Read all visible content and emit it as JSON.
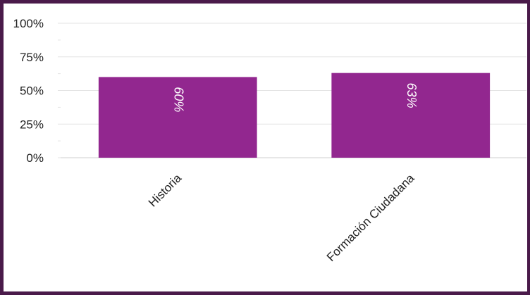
{
  "chart_data": {
    "type": "bar",
    "categories": [
      "Historia",
      "Formación Ciudadana"
    ],
    "values": [
      60,
      63
    ],
    "data_labels": [
      "60%",
      "63%"
    ],
    "title": "",
    "xlabel": "",
    "ylabel": "",
    "ylim": [
      0,
      100
    ],
    "y_ticks": [
      0,
      25,
      50,
      75,
      100
    ],
    "y_tick_labels": [
      "0%",
      "25%",
      "50%",
      "75%",
      "100%"
    ],
    "grid": true,
    "legend": "none",
    "colors": {
      "bar": "#92278f",
      "gridline": "#e3e3e3",
      "axis": "#cfcfcf",
      "border": "#4a1a4a",
      "data_label": "#ffffff"
    }
  }
}
